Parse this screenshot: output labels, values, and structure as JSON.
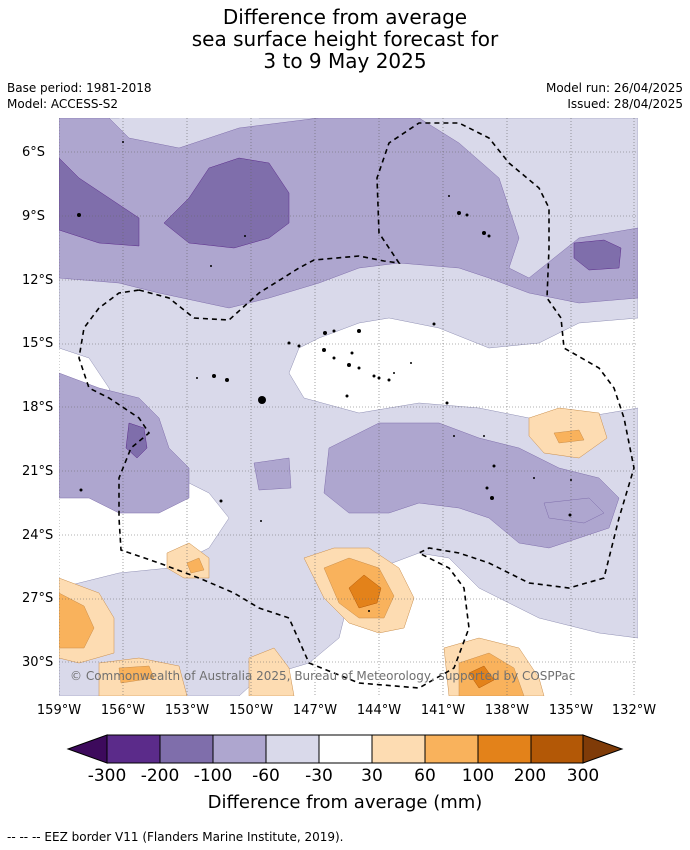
{
  "title": {
    "line1": "Difference from average",
    "line2": "sea surface height forecast for",
    "line3": "3 to 9 May 2025"
  },
  "meta": {
    "base_period": "Base period: 1981-2018",
    "model": "Model: ACCESS-S2",
    "model_run": "Model run: 26/04/2025",
    "issued": "Issued: 28/04/2025"
  },
  "map": {
    "lat_labels": [
      "6°S",
      "9°S",
      "12°S",
      "15°S",
      "18°S",
      "21°S",
      "24°S",
      "27°S",
      "30°S"
    ],
    "lon_labels": [
      "159°W",
      "156°W",
      "153°W",
      "150°W",
      "147°W",
      "144°W",
      "141°W",
      "138°W",
      "135°W",
      "132°W"
    ],
    "copyright": "© Commonwealth of Australia 2025, Bureau of Meteorology, supported by COSPPac"
  },
  "colorbar": {
    "labels": [
      "-300",
      "-200",
      "-100",
      "-60",
      "-30",
      "30",
      "60",
      "100",
      "200",
      "300"
    ],
    "colors": [
      "#3d0a5c",
      "#5b2b8a",
      "#7f6eab",
      "#aea6cf",
      "#d9d9ea",
      "#ffffff",
      "#fddcb2",
      "#f9b25c",
      "#e3821a",
      "#b35806",
      "#7f3b08"
    ],
    "title": "Difference from average (mm)"
  },
  "footer": "--  --  -- EEZ border V11 (Flanders Marine Institute, 2019)."
}
